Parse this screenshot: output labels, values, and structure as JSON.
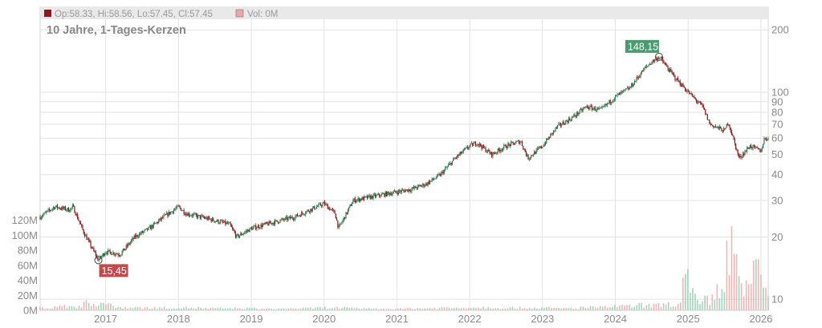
{
  "legend": {
    "ohlc_text": "Op:58.33, Hi:58.56, Lo:57.45, Cl:57.45",
    "vol_text": "Vol: 0M",
    "ohlc_color": "#8b1a1a",
    "vol_color": "#e8a8a8"
  },
  "subtitle": "10 Jahre, 1-Tages-Kerzen",
  "chart_data": {
    "type": "candlestick",
    "title": "",
    "subtitle": "10 Jahre, 1-Tages-Kerzen",
    "price_axis": {
      "scale": "log",
      "position": "right",
      "ticks": [
        10,
        20,
        30,
        40,
        50,
        60,
        70,
        80,
        90,
        100,
        200
      ],
      "tick_labels": [
        "10",
        "20",
        "30",
        "40",
        "50",
        "60",
        "70",
        "80",
        "90",
        "100",
        "200"
      ],
      "range": [
        9,
        225
      ]
    },
    "volume_axis": {
      "position": "left",
      "unit": "M",
      "ticks": [
        0,
        20,
        40,
        60,
        80,
        100,
        120
      ],
      "tick_labels": [
        "0M",
        "20M",
        "40M",
        "60M",
        "80M",
        "100M",
        "120M"
      ],
      "range": [
        0,
        125
      ]
    },
    "x_axis": {
      "range": [
        2016.1,
        2026.1
      ],
      "ticks": [
        2017,
        2018,
        2019,
        2020,
        2021,
        2022,
        2023,
        2024,
        2025,
        2026
      ],
      "tick_labels": [
        "2017",
        "2018",
        "2019",
        "2020",
        "2021",
        "2022",
        "2023",
        "2024",
        "2025",
        "2026"
      ]
    },
    "grid": true,
    "price_series": {
      "name": "",
      "x": [
        2016.1,
        2016.3,
        2016.5,
        2016.55,
        2016.7,
        2016.8,
        2016.9,
        2017.0,
        2017.2,
        2017.4,
        2017.6,
        2017.8,
        2018.0,
        2018.1,
        2018.3,
        2018.5,
        2018.7,
        2018.8,
        2019.0,
        2019.2,
        2019.4,
        2019.6,
        2019.8,
        2020.0,
        2020.15,
        2020.2,
        2020.4,
        2020.6,
        2020.8,
        2021.0,
        2021.2,
        2021.4,
        2021.6,
        2021.8,
        2022.0,
        2022.1,
        2022.3,
        2022.5,
        2022.7,
        2022.8,
        2023.0,
        2023.2,
        2023.4,
        2023.6,
        2023.8,
        2024.0,
        2024.2,
        2024.4,
        2024.5,
        2024.6,
        2024.8,
        2025.0,
        2025.2,
        2025.3,
        2025.5,
        2025.55,
        2025.7,
        2025.85,
        2026.0,
        2026.05
      ],
      "y": [
        25,
        28,
        27,
        28,
        21,
        18,
        15.45,
        17,
        16.5,
        20,
        22,
        25,
        28,
        26,
        25,
        24,
        23,
        20,
        22,
        23,
        24,
        25,
        27,
        29,
        26,
        22,
        30,
        31,
        32,
        33,
        34,
        36,
        40,
        48,
        55,
        57,
        50,
        55,
        58,
        48,
        55,
        68,
        75,
        85,
        82,
        95,
        105,
        130,
        140,
        148.15,
        120,
        100,
        85,
        70,
        65,
        72,
        48,
        55,
        52,
        60
      ],
      "min_marker": {
        "x": 2016.9,
        "y": 15.45,
        "label": "15,45",
        "color": "#c24a4a"
      },
      "max_marker": {
        "x": 2024.6,
        "y": 148.15,
        "label": "148,15",
        "color": "#4a9a72"
      },
      "up_color": "#2f7a52",
      "down_color": "#8b1a1a"
    },
    "volume_series": {
      "name": "",
      "x": [
        2016.1,
        2016.5,
        2016.9,
        2017.3,
        2017.7,
        2018.1,
        2018.5,
        2018.9,
        2019.3,
        2019.7,
        2020.1,
        2020.5,
        2020.9,
        2021.3,
        2021.7,
        2022.1,
        2022.5,
        2022.9,
        2023.3,
        2023.7,
        2024.1,
        2024.5,
        2024.8,
        2025.0,
        2025.2,
        2025.4,
        2025.6,
        2025.65,
        2025.8,
        2025.95,
        2026.05
      ],
      "y": [
        5,
        8,
        14,
        6,
        5,
        5,
        4,
        4,
        3,
        4,
        5,
        4,
        3,
        4,
        5,
        6,
        5,
        5,
        4,
        6,
        8,
        10,
        12,
        55,
        20,
        35,
        112,
        75,
        40,
        68,
        30
      ],
      "up_color": "#8fcfb0",
      "down_color": "#f0a8a8"
    }
  }
}
